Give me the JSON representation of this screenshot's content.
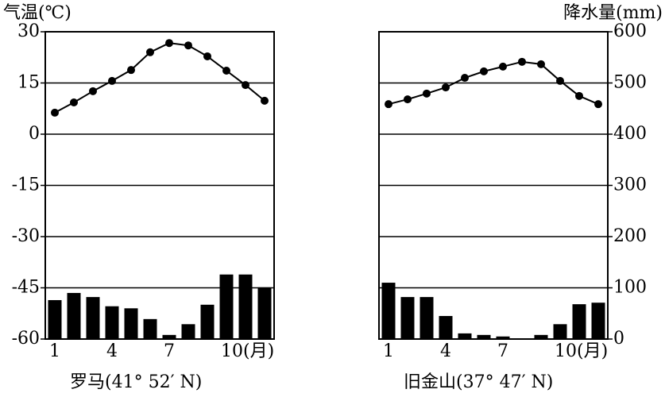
{
  "chart_data": {
    "type": "climate",
    "y_label": "气温(℃)",
    "y2_label": "降水量(mm)",
    "ylim": [
      -60,
      30
    ],
    "yticks": [
      -60,
      -45,
      -30,
      -15,
      0,
      15,
      30
    ],
    "y2lim": [
      0,
      600
    ],
    "y2ticks": [
      0,
      100,
      200,
      300,
      400,
      500,
      600
    ],
    "categories": [
      "1",
      null,
      null,
      "4",
      null,
      null,
      "7",
      null,
      null,
      "10(月)",
      null,
      null
    ],
    "color": "#000000",
    "grid": true,
    "panels": [
      {
        "title": "罗马(41° 52′ N)",
        "temperature": [
          6.3,
          9.3,
          12.6,
          15.6,
          18.8,
          24,
          26.7,
          26,
          22.8,
          18.6,
          14.4,
          9.8
        ],
        "precipitation": [
          76,
          90,
          82,
          64,
          60,
          39,
          8,
          29,
          67,
          126,
          126,
          101
        ]
      },
      {
        "title": "旧金山(37° 47′ N)",
        "temperature": [
          8.8,
          10.2,
          11.9,
          13.7,
          16.5,
          18.4,
          19.8,
          21.2,
          20.5,
          15.6,
          11.2,
          8.8
        ],
        "precipitation": [
          110,
          82,
          82,
          45,
          11,
          8,
          5,
          0,
          8,
          29,
          68,
          71
        ]
      }
    ]
  }
}
